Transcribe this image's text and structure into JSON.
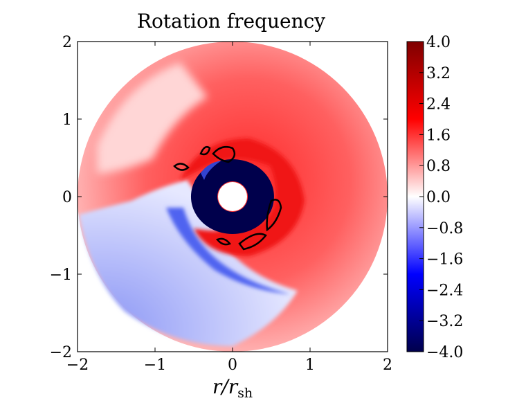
{
  "chart_data": {
    "type": "heatmap",
    "title": "Rotation frequency",
    "xlabel_main": "r/r",
    "xlabel_sub": "sh",
    "ylabel": "",
    "xlim": [
      -2,
      2
    ],
    "ylim": [
      -2,
      2
    ],
    "xticks": [
      "−2",
      "−1",
      "0",
      "1",
      "2"
    ],
    "yticks": [
      "2",
      "1",
      "0",
      "−1",
      "−2"
    ],
    "colorbar": {
      "min": -4.0,
      "max": 4.0,
      "colormap": "seismic",
      "ticks": [
        "4.0",
        "3.2",
        "2.4",
        "1.6",
        "0.8",
        "0.0",
        "−0.8",
        "−1.6",
        "−2.4",
        "−3.2",
        "−4.0"
      ]
    },
    "domain_outer_radius": 2.0,
    "domain_inner_radius": 0.2,
    "description_regions": [
      {
        "region": "upper-right and right",
        "approx_value": 2.0
      },
      {
        "region": "outer shell",
        "approx_value": 0.6
      },
      {
        "region": "inner ring around core",
        "approx_value": -4.0
      },
      {
        "region": "lower-left wedge",
        "approx_value": -1.0
      }
    ]
  },
  "colors": {
    "neg_max": "#00004c",
    "neg_mid": "#0000ff",
    "zero": "#ffffff",
    "pos_mid": "#ff0000",
    "pos_max": "#7f0000",
    "contour": "#000000"
  }
}
